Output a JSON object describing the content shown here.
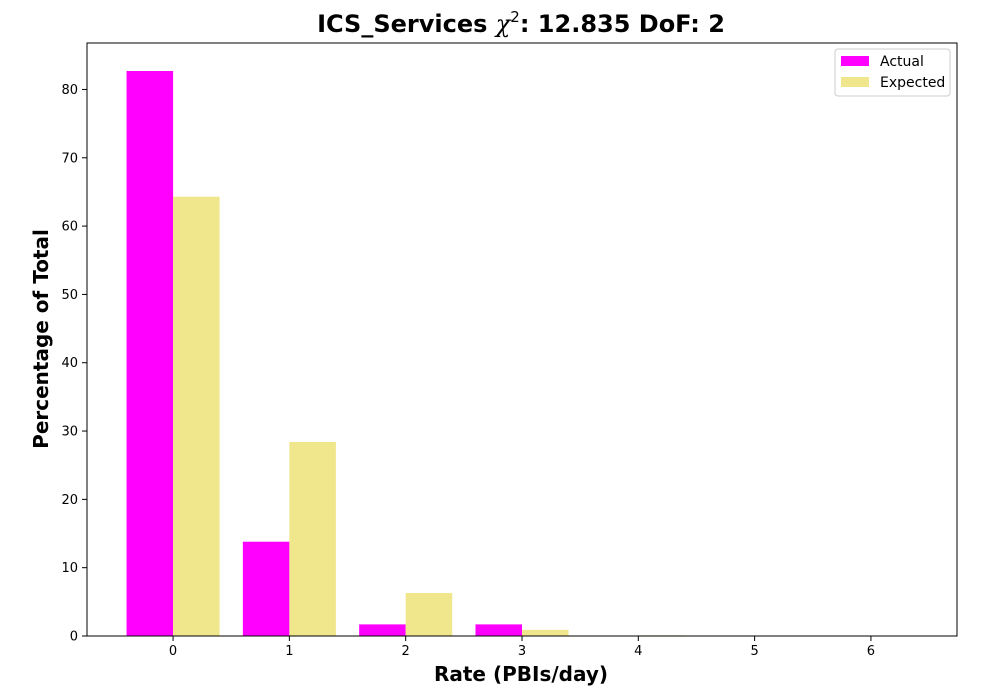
{
  "chart_data": {
    "type": "bar",
    "title": {
      "prefix": "ICS_Services ",
      "chi_symbol": "χ",
      "chi_sup": "2",
      "suffix": ": 12.835 DoF: 2"
    },
    "xlabel": "Rate (PBIs/day)",
    "ylabel": "Percentage of Total",
    "categories": [
      "0",
      "1",
      "2",
      "3",
      "4",
      "5",
      "6"
    ],
    "x": [
      0,
      1,
      2,
      3,
      4,
      5,
      6
    ],
    "series": [
      {
        "name": "Actual",
        "color": "#ff00ff",
        "values": [
          82.7,
          13.8,
          1.7,
          1.7,
          0,
          0,
          0
        ]
      },
      {
        "name": "Expected",
        "color": "#f0e68c",
        "values": [
          64.3,
          28.4,
          6.3,
          0.9,
          0.1,
          0,
          0
        ]
      }
    ],
    "xlim": [
      -0.74,
      6.74
    ],
    "ylim": [
      0,
      86.8
    ],
    "yticks": [
      0,
      10,
      20,
      30,
      40,
      50,
      60,
      70,
      80
    ],
    "legend_position": "top-right",
    "grid": false
  }
}
